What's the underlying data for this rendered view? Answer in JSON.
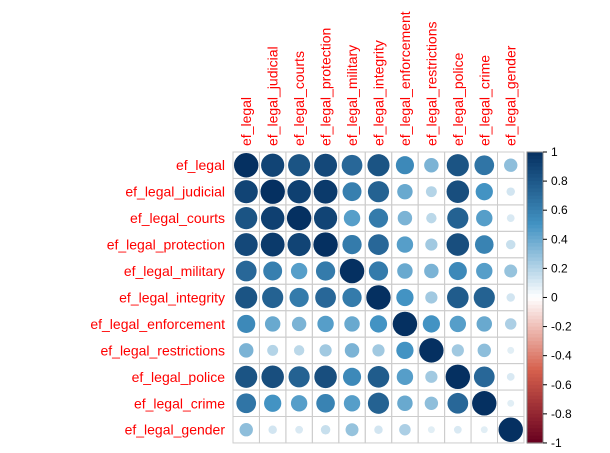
{
  "chart_data": {
    "type": "heatmap",
    "style": "corrplot-circle",
    "variables": [
      "ef_legal",
      "ef_legal_judicial",
      "ef_legal_courts",
      "ef_legal_protection",
      "ef_legal_military",
      "ef_legal_integrity",
      "ef_legal_enforcement",
      "ef_legal_restrictions",
      "ef_legal_police",
      "ef_legal_crime",
      "ef_legal_gender"
    ],
    "matrix": [
      [
        1.0,
        0.9,
        0.82,
        0.88,
        0.72,
        0.82,
        0.55,
        0.35,
        0.82,
        0.65,
        0.3
      ],
      [
        0.9,
        1.0,
        0.92,
        0.95,
        0.6,
        0.75,
        0.4,
        0.2,
        0.85,
        0.5,
        0.12
      ],
      [
        0.82,
        0.92,
        1.0,
        0.9,
        0.45,
        0.62,
        0.35,
        0.18,
        0.75,
        0.45,
        0.1
      ],
      [
        0.88,
        0.95,
        0.9,
        1.0,
        0.62,
        0.72,
        0.45,
        0.25,
        0.85,
        0.58,
        0.15
      ],
      [
        0.72,
        0.6,
        0.45,
        0.62,
        1.0,
        0.62,
        0.4,
        0.35,
        0.55,
        0.45,
        0.28
      ],
      [
        0.82,
        0.75,
        0.62,
        0.72,
        0.62,
        1.0,
        0.5,
        0.25,
        0.78,
        0.75,
        0.12
      ],
      [
        0.55,
        0.4,
        0.35,
        0.45,
        0.4,
        0.5,
        1.0,
        0.5,
        0.45,
        0.4,
        0.22
      ],
      [
        0.35,
        0.2,
        0.18,
        0.25,
        0.35,
        0.25,
        0.5,
        1.0,
        0.25,
        0.3,
        0.08
      ],
      [
        0.82,
        0.85,
        0.75,
        0.85,
        0.55,
        0.78,
        0.45,
        0.25,
        1.0,
        0.72,
        0.1
      ],
      [
        0.65,
        0.5,
        0.45,
        0.58,
        0.45,
        0.75,
        0.4,
        0.3,
        0.72,
        1.0,
        0.08
      ],
      [
        0.3,
        0.12,
        0.1,
        0.15,
        0.28,
        0.12,
        0.22,
        0.08,
        0.1,
        0.08,
        1.0
      ]
    ],
    "colorbar": {
      "range": [
        -1,
        1
      ],
      "ticks": [
        "1",
        "0.8",
        "0.6",
        "0.4",
        "0.2",
        "0",
        "-0.2",
        "-0.4",
        "-0.6",
        "-0.8",
        "-1"
      ]
    },
    "colors": {
      "label": "#ff0000",
      "negative": "#67001f",
      "mid_negative": "#d6604d",
      "zero": "#ffffff",
      "mid_positive": "#4393c3",
      "positive": "#053061",
      "grid": "#cccccc"
    }
  }
}
